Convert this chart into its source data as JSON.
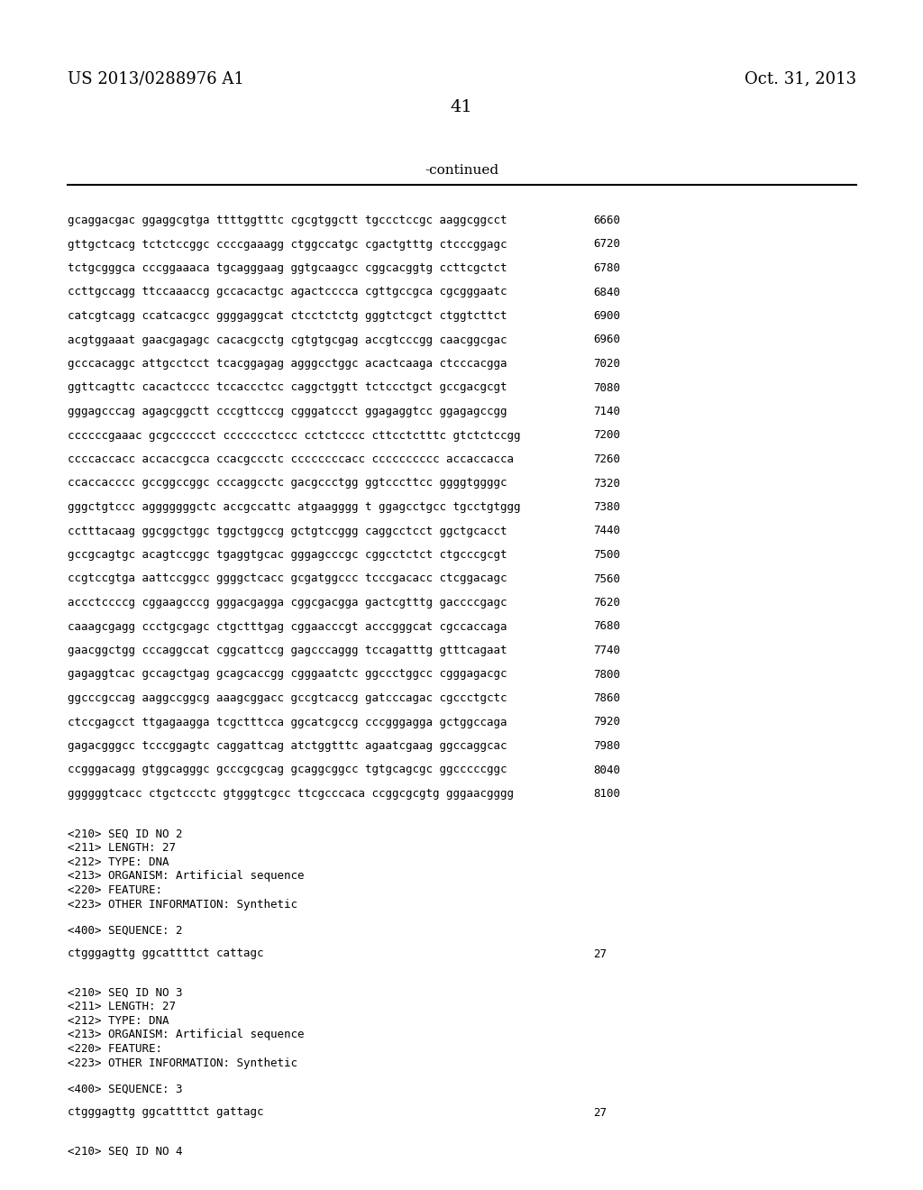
{
  "header_left": "US 2013/0288976 A1",
  "header_right": "Oct. 31, 2013",
  "page_number": "41",
  "continued_label": "-continued",
  "background_color": "#ffffff",
  "text_color": "#000000",
  "sequence_lines": [
    [
      "gcaggacgac ggaggcgtga ttttggtttc cgcgtggctt tgccctccgc aaggcggcct",
      "6660"
    ],
    [
      "gttgctcacg tctctccggc ccccgaaagg ctggccatgc cgactgtttg ctcccggagc",
      "6720"
    ],
    [
      "tctgcgggca cccggaaaca tgcagggaag ggtgcaagcc cggcacggtg ccttcgctct",
      "6780"
    ],
    [
      "ccttgccagg ttccaaaccg gccacactgc agactcccca cgttgccgca cgcgggaatc",
      "6840"
    ],
    [
      "catcgtcagg ccatcacgcc ggggaggcat ctcctctctg gggtctcgct ctggtcttct",
      "6900"
    ],
    [
      "acgtggaaat gaacgagagc cacacgcctg cgtgtgcgag accgtcccgg caacggcgac",
      "6960"
    ],
    [
      "gcccacaggc attgcctcct tcacggagag agggcctggc acactcaaga ctcccacgga",
      "7020"
    ],
    [
      "ggttcagttc cacactcccc tccaccctcc caggctggtt tctccctgct gccgacgcgt",
      "7080"
    ],
    [
      "gggagcccag agagcggctt cccgttcccg cgggatccct ggagaggtcc ggagagccgg",
      "7140"
    ],
    [
      "ccccccgaaac gcgcccccct ccccccctccc cctctcccc cttcctctttc gtctctccgg",
      "7200"
    ],
    [
      "ccccaccacc accaccgcca ccacgccctc ccccccccacc cccccccccc accaccacca",
      "7260"
    ],
    [
      "ccaccacccc gccggccggc cccaggcctc gacgccctgg ggtcccttcc ggggtggggc",
      "7320"
    ],
    [
      "gggctgtccc agggggggctc accgccattc atgaagggg t ggagcctgcc tgcctgtggg",
      "7380"
    ],
    [
      "cctttacaag ggcggctggc tggctggccg gctgtccggg caggcctcct ggctgcacct",
      "7440"
    ],
    [
      "gccgcagtgc acagtccggc tgaggtgcac gggagcccgc cggcctctct ctgcccgcgt",
      "7500"
    ],
    [
      "ccgtccgtga aattccggcc ggggctcacc gcgatggccc tcccgacacc ctcggacagc",
      "7560"
    ],
    [
      "accctccccg cggaagcccg gggacgagga cggcgacgga gactcgtttg gaccccgagc",
      "7620"
    ],
    [
      "caaagcgagg ccctgcgagc ctgctttgag cggaacccgt acccgggcat cgccaccaga",
      "7680"
    ],
    [
      "gaacggctgg cccaggccat cggcattccg gagcccaggg tccagatttg gtttcagaat",
      "7740"
    ],
    [
      "gagaggtcac gccagctgag gcagcaccgg cgggaatctc ggccctggcc cgggagacgc",
      "7800"
    ],
    [
      "ggcccgccag aaggccggcg aaagcggacc gccgtcaccg gatcccagac cgccctgctc",
      "7860"
    ],
    [
      "ctccgagcct ttgagaagga tcgctttcca ggcatcgccg cccgggagga gctggccaga",
      "7920"
    ],
    [
      "gagacgggcc tcccggagtc caggattcag atctggtttc agaatcgaag ggccaggcac",
      "7980"
    ],
    [
      "ccgggacagg gtggcagggc gcccgcgcag gcaggcggcc tgtgcagcgc ggcccccggc",
      "8040"
    ],
    [
      "ggggggtcacc ctgctccctc gtgggtcgcc ttcgcccaca ccggcgcgtg gggaacgggg",
      "8100"
    ]
  ],
  "metadata_block1": [
    "<210> SEQ ID NO 2",
    "<211> LENGTH: 27",
    "<212> TYPE: DNA",
    "<213> ORGANISM: Artificial sequence",
    "<220> FEATURE:",
    "<223> OTHER INFORMATION: Synthetic"
  ],
  "sequence2_label": "<400> SEQUENCE: 2",
  "sequence2_line": [
    "ctgggagttg ggcattttct cattagc",
    "27"
  ],
  "metadata_block2": [
    "<210> SEQ ID NO 3",
    "<211> LENGTH: 27",
    "<212> TYPE: DNA",
    "<213> ORGANISM: Artificial sequence",
    "<220> FEATURE:",
    "<223> OTHER INFORMATION: Synthetic"
  ],
  "sequence3_label": "<400> SEQUENCE: 3",
  "sequence3_line": [
    "ctgggagttg ggcattttct gattagc",
    "27"
  ],
  "footer_line": "<210> SEQ ID NO 4"
}
